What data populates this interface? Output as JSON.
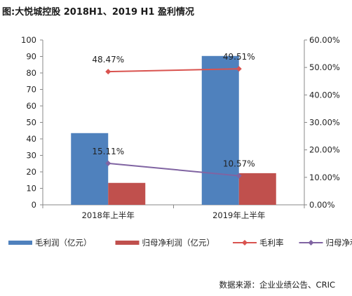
{
  "title": "图:大悦城控股 2018H1、2019 H1 盈利情况",
  "source": "数据来源：企业业绩公告、CRIC",
  "colors": {
    "gross_profit": "#4f81bd",
    "net_profit": "#c0504d",
    "gross_margin": "#d9534f",
    "net_margin": "#8064a2"
  },
  "chart_data": {
    "type": "bar",
    "categories": [
      "2018年上半年",
      "2019年上半年"
    ],
    "series": [
      {
        "name": "毛利润（亿元）",
        "type": "bar",
        "axis": "left",
        "values": [
          43.5,
          90.3
        ]
      },
      {
        "name": "归母净利润（亿元）",
        "type": "bar",
        "axis": "left",
        "values": [
          13.3,
          19.2
        ]
      },
      {
        "name": "毛利率",
        "type": "line",
        "axis": "right",
        "values": [
          0.4847,
          0.4951
        ],
        "labels": [
          "48.47%",
          "49.51%"
        ]
      },
      {
        "name": "归母净利率",
        "type": "line",
        "axis": "right",
        "values": [
          0.1511,
          0.1057
        ],
        "labels": [
          "15.11%",
          "10.57%"
        ]
      }
    ],
    "ylim_left": [
      0,
      100
    ],
    "yticks_left": [
      "0",
      "10",
      "20",
      "30",
      "40",
      "50",
      "60",
      "70",
      "80",
      "90",
      "100"
    ],
    "ylim_right": [
      0,
      0.6
    ],
    "yticks_right": [
      "0.00%",
      "10.00%",
      "20.00%",
      "30.00%",
      "40.00%",
      "50.00%",
      "60.00%"
    ],
    "grid": false,
    "legend_position": "bottom"
  }
}
